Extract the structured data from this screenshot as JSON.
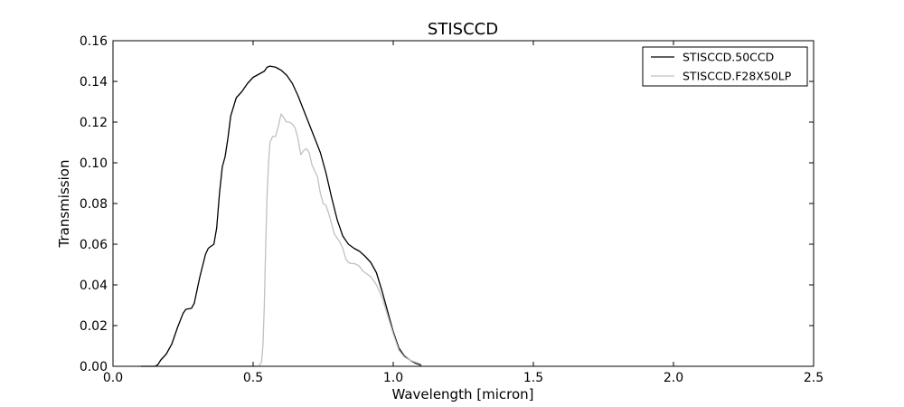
{
  "chart_data": {
    "type": "line",
    "title": "STISCCD",
    "xlabel": "Wavelength [micron]",
    "ylabel": "Transmission",
    "xlim": [
      0.0,
      2.5
    ],
    "ylim": [
      0.0,
      0.16
    ],
    "xticks": [
      0.0,
      0.5,
      1.0,
      1.5,
      2.0,
      2.5
    ],
    "xtick_labels": [
      "0.0",
      "0.5",
      "1.0",
      "1.5",
      "2.0",
      "2.5"
    ],
    "yticks": [
      0.0,
      0.02,
      0.04,
      0.06,
      0.08,
      0.1,
      0.12,
      0.14,
      0.16
    ],
    "ytick_labels": [
      "0.00",
      "0.02",
      "0.04",
      "0.06",
      "0.08",
      "0.10",
      "0.12",
      "0.14",
      "0.16"
    ],
    "grid": false,
    "legend_position": "top-right",
    "series": [
      {
        "name": "STISCCD.50CCD",
        "color": "#000000",
        "x": [
          0.1,
          0.15,
          0.16,
          0.17,
          0.19,
          0.21,
          0.23,
          0.25,
          0.26,
          0.28,
          0.29,
          0.31,
          0.33,
          0.34,
          0.36,
          0.37,
          0.38,
          0.39,
          0.4,
          0.41,
          0.42,
          0.44,
          0.46,
          0.48,
          0.5,
          0.52,
          0.54,
          0.55,
          0.56,
          0.58,
          0.6,
          0.62,
          0.64,
          0.66,
          0.68,
          0.7,
          0.72,
          0.74,
          0.76,
          0.78,
          0.8,
          0.82,
          0.84,
          0.86,
          0.88,
          0.9,
          0.92,
          0.94,
          0.96,
          0.98,
          1.0,
          1.02,
          1.04,
          1.06,
          1.08,
          1.1
        ],
        "y": [
          0.0,
          0.0,
          0.0008,
          0.003,
          0.006,
          0.011,
          0.019,
          0.026,
          0.028,
          0.0285,
          0.031,
          0.044,
          0.055,
          0.058,
          0.06,
          0.068,
          0.085,
          0.098,
          0.103,
          0.112,
          0.123,
          0.132,
          0.135,
          0.139,
          0.142,
          0.1435,
          0.145,
          0.147,
          0.1475,
          0.147,
          0.1455,
          0.143,
          0.139,
          0.133,
          0.126,
          0.119,
          0.112,
          0.105,
          0.095,
          0.083,
          0.072,
          0.064,
          0.06,
          0.058,
          0.0565,
          0.054,
          0.051,
          0.046,
          0.037,
          0.027,
          0.017,
          0.009,
          0.005,
          0.003,
          0.0015,
          0.0005
        ]
      },
      {
        "name": "STISCCD.F28X50LP",
        "color": "#c0c0c0",
        "x": [
          0.1,
          0.15,
          0.52,
          0.53,
          0.535,
          0.54,
          0.545,
          0.55,
          0.555,
          0.56,
          0.57,
          0.58,
          0.59,
          0.6,
          0.61,
          0.62,
          0.63,
          0.64,
          0.65,
          0.66,
          0.67,
          0.68,
          0.69,
          0.7,
          0.71,
          0.72,
          0.73,
          0.74,
          0.75,
          0.76,
          0.77,
          0.78,
          0.79,
          0.8,
          0.81,
          0.82,
          0.83,
          0.84,
          0.85,
          0.86,
          0.87,
          0.88,
          0.89,
          0.9,
          0.91,
          0.92,
          0.93,
          0.94,
          0.96,
          0.98,
          1.0,
          1.02,
          1.04,
          1.06,
          1.08,
          1.1
        ],
        "y": [
          0.0,
          0.0,
          0.0,
          0.002,
          0.01,
          0.03,
          0.06,
          0.085,
          0.1,
          0.11,
          0.113,
          0.113,
          0.118,
          0.124,
          0.122,
          0.12,
          0.12,
          0.119,
          0.117,
          0.112,
          0.104,
          0.106,
          0.107,
          0.105,
          0.099,
          0.096,
          0.093,
          0.085,
          0.08,
          0.079,
          0.075,
          0.07,
          0.065,
          0.063,
          0.061,
          0.058,
          0.053,
          0.051,
          0.0505,
          0.0505,
          0.05,
          0.049,
          0.047,
          0.046,
          0.045,
          0.044,
          0.042,
          0.04,
          0.034,
          0.025,
          0.016,
          0.008,
          0.0045,
          0.003,
          0.002,
          0.001
        ]
      }
    ]
  }
}
